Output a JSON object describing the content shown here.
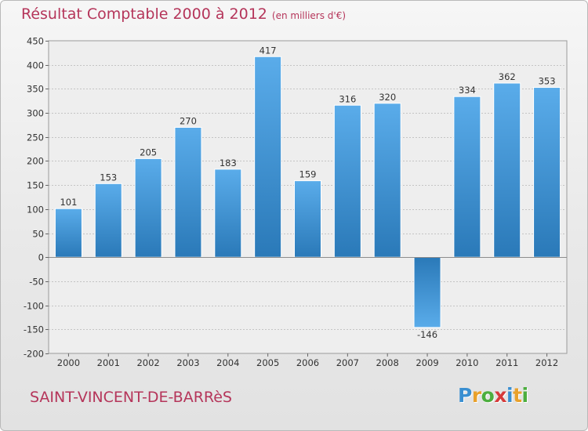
{
  "title": "Résultat Comptable 2000 à 2012",
  "title_unit": "(en milliers d'€)",
  "commune": "SAINT-VINCENT-DE-BARRèS",
  "logo": {
    "text": "Proxiti",
    "letters": [
      "P",
      "r",
      "o",
      "x",
      "i",
      "t",
      "i"
    ],
    "colors": [
      "#3a8fd1",
      "#e9a12b",
      "#4cae3e",
      "#d63a3a",
      "#3a8fd1",
      "#e9a12b",
      "#4cae3e"
    ]
  },
  "colors": {
    "bar_light": "#5aacea",
    "bar_dark": "#2a79b8",
    "title": "#b5355a"
  },
  "chart_data": {
    "type": "bar",
    "title": "Résultat Comptable 2000 à 2012",
    "ylabel": "en milliers d'€",
    "xlabel": "",
    "categories": [
      "2000",
      "2001",
      "2002",
      "2003",
      "2004",
      "2005",
      "2006",
      "2007",
      "2008",
      "2009",
      "2010",
      "2011",
      "2012"
    ],
    "values": [
      101,
      153,
      205,
      270,
      183,
      417,
      159,
      316,
      320,
      -146,
      334,
      362,
      353
    ],
    "ylim": [
      -200,
      450
    ],
    "yticks": [
      -200,
      -150,
      -100,
      -50,
      0,
      50,
      100,
      150,
      200,
      250,
      300,
      350,
      400,
      450
    ],
    "grid": true
  }
}
